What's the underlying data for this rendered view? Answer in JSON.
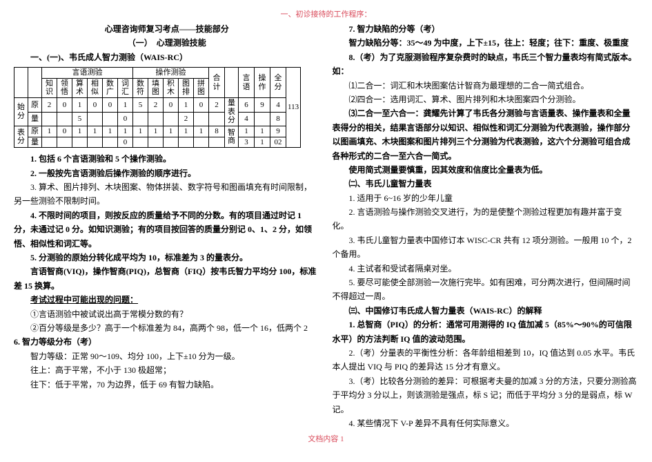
{
  "top_stripe": "一、初诊接待的工作程序：",
  "title1": "心理咨询师复习考点——技能部分",
  "title2": "（一）　心理测验技能",
  "sec1_heading": "一、(一)、韦氏成人智力测验（WAIS-RC）",
  "table": {
    "grp_lang": "言语测验",
    "grp_op": "操作测验",
    "cols": [
      "知识",
      "领悟",
      "算术",
      "相似",
      "数广",
      "词汇",
      "数符",
      "填图",
      "积木",
      "图排",
      "拼图"
    ],
    "he": "合计",
    "yanyu": "言语",
    "caozuo": "操作",
    "quan": "全分",
    "liangbiao": "量表分",
    "zhishang": "智商",
    "shi": "始分",
    "biao": "表分",
    "yuan": "原",
    "liang": "量",
    "r1": [
      "2",
      "0",
      "1",
      "0",
      "0",
      "1",
      "5",
      "2",
      "0",
      "1",
      "0",
      "2",
      "始分",
      "6",
      "9",
      "4"
    ],
    "r2": [
      "",
      "",
      "5",
      "",
      "",
      "0",
      "",
      "",
      "",
      "2",
      "",
      "",
      "量表分",
      "4",
      "",
      "8"
    ],
    "r3": [
      "1",
      "0",
      "1",
      "1",
      "1",
      "1",
      "1",
      "1",
      "1",
      "1",
      "1",
      "8",
      "智商",
      "1",
      "1",
      "9"
    ],
    "r4": [
      "",
      "",
      "",
      "",
      "",
      "0",
      "",
      "",
      "",
      "",
      "",
      "",
      "",
      "3",
      "1",
      "02"
    ],
    "rside": "113"
  },
  "left": {
    "p1": "1. 包括 6 个言语测验和 5 个操作测验。",
    "p2": "2. 一般按先言语测验后操作测验的顺序进行。",
    "p3": "3. 算术、图片排列、木块图案、物体拼装、数字符号和图画填充有时间限制，另一些测验不限制时间。",
    "p4": "4. 不限时间的项目，则按反应的质量给予不同的分数。有的项目通过时记 1 分，未通过记 0 分。如知识测验；有的项目按回答的质量分别记 0、1、2 分，如领悟、相似性和词汇等。",
    "p5": "5. 分测验的原始分转化成平均为 10，标准差为 3 的量表分。",
    "p6": "言语智商(VIQ)，操作智商(PIQ)，总智商（FIQ）按韦氏智力平均分 100，标准差 15 换算。",
    "q_heading": "考试过程中可能出现的问题：",
    "q1": "①言语测验中被试说出高于常模分数的有？",
    "q2": "②百分等级是多少？高于一个标准差为 84，高两个 98，低一个 16，低两个 2",
    "p7h": "6. 智力等级分布（考）",
    "p7a": "智力等级：正常 90～109、均分 100，上下±10 分为一级。",
    "p7b": "往上：高于平常，不小于 130 极超常；",
    "p7c": "往下：低于平常，70 为边界，低于 69 有智力缺陷。"
  },
  "right": {
    "p1h": "7. 智力缺陷的分等（考）",
    "p1": "智力缺陷分等：35～49 为中度，上下±15，往上：轻度；往下：重度、极重度",
    "p2h": "8.（考）为了克服测验程序复杂费时的缺点，韦氏三个智力量表均有简式版本。如：",
    "p2a": "⑴二合一：词汇和木块图案估计智商为最理想的二合一简式组合。",
    "p2b": "⑵四合一：选用词汇、算术、图片排列和木块图案四个分测验。",
    "p2c": "⑶二合一至六合一：龚耀先计算了韦氏各分测验与言语量表、操作量表和全量表得分的相关，结果言语部分以知识、相似性和词汇分测验为代表测验，操作部分以图画填充、木块图案和图片排列三个分测验为代表测验，这六个分测验可组合成各种形式的二合一至六合一简式。",
    "p2d": "使用简式测量要慎重，因其效度和信度比全量表为低。",
    "childh": "㈡、韦氏儿童智力量表",
    "c1": "1. 适用于 6~16 岁的少年儿童",
    "c2": "2. 言语测验与操作测验交叉进行，为的是使整个测验过程更加有趣并富于变化。",
    "c3": "3. 韦氏儿童智力量表中国修订本 WISC-CR 共有 12 项分测验。一般用 10 个，2 个备用。",
    "c4": "4. 主试者和受试者隔桌对坐。",
    "c5": "5. 要尽可能使全部测验一次施行完毕。如有困难，可分两次进行，但间隔时间不得超过一周。",
    "inth": "㈢、中国修订韦氏成人智力量表（WAIS-RC）的解释",
    "i1": "1. 总智商（PIQ）的分析：通常可用测得的 IQ 值加减 5（85%～90%的可信限水平）的方法判断 IQ 值的波动范围。",
    "i2": "2.（考）分量表的平衡性分析：各年龄组相差到 10，IQ 值达到 0.05 水平。韦氏本人提出 VIQ 与 PIQ 的差异达 15 分才有意义。",
    "i3": "3.（考）比较各分测验的差异：可根据考夫曼的加减 3 分的方法，只要分测验高于平均分 3 分以上，则该测验是强点，标 S 记；而低于平均分 3 分的是弱点，标 W 记。",
    "i4": "4. 某些情况下 V-P 差异不具有任何实际意义。"
  },
  "footer": "文档内容 1"
}
